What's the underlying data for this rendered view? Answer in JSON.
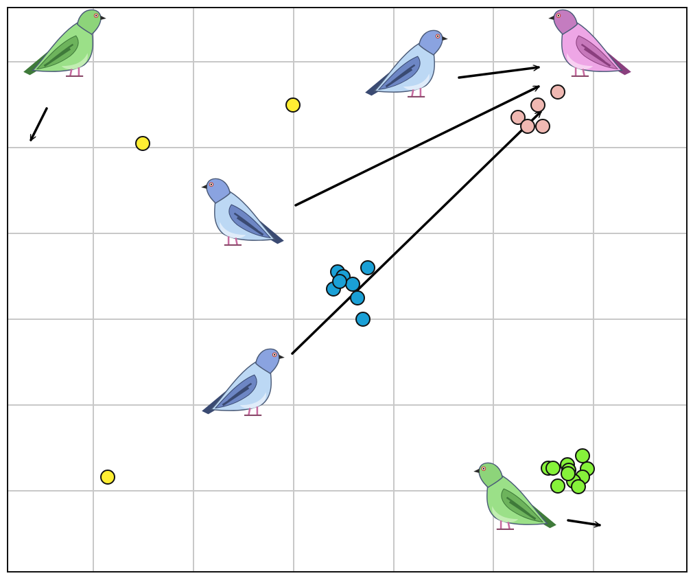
{
  "board": {
    "columns": 7,
    "rows": 6,
    "colors": {
      "background": "#ffffff",
      "grid": "#c8c8c8",
      "border": "#111111",
      "arrow": "#000000"
    }
  },
  "pigeons": [
    {
      "id": "green-pigeon-top-left",
      "variant": "green",
      "facing": "right",
      "color": "#8fdc7c"
    },
    {
      "id": "blue-pigeon-top",
      "variant": "blue",
      "facing": "right",
      "color": "#b9d8f3"
    },
    {
      "id": "pink-pigeon-top-right",
      "variant": "pink",
      "facing": "left",
      "color": "#e79ad8"
    },
    {
      "id": "blue-pigeon-center",
      "variant": "blue",
      "facing": "left",
      "color": "#b9d8f3"
    },
    {
      "id": "blue-pigeon-lower",
      "variant": "blue",
      "facing": "right",
      "color": "#b9d8f3"
    },
    {
      "id": "green-pigeon-bottom-right",
      "variant": "green",
      "facing": "left",
      "color": "#a9e89a"
    }
  ],
  "seed_groups": [
    {
      "id": "yellow-seeds",
      "color": "#ffee33",
      "count": 3
    },
    {
      "id": "blue-seed-cluster",
      "color": "#1aa0d6",
      "count": 8
    },
    {
      "id": "pink-seed-cluster",
      "color": "#efb8b2",
      "count": 5
    },
    {
      "id": "green-seed-cluster",
      "color": "#86f23a",
      "count": 11
    }
  ],
  "moves": [
    {
      "id": "green-pigeon-top-left-move",
      "from": "green-pigeon-top-left",
      "direction": "down-left"
    },
    {
      "id": "blue-pigeon-top-move",
      "from": "blue-pigeon-top",
      "to": "pink-pigeon-top-right"
    },
    {
      "id": "blue-pigeon-center-move",
      "from": "blue-pigeon-center",
      "to": "pink-pigeon-top-right"
    },
    {
      "id": "blue-pigeon-lower-move",
      "from": "blue-pigeon-lower",
      "to": "pink-seed-cluster"
    },
    {
      "id": "green-pigeon-bottom-right-move",
      "from": "green-pigeon-bottom-right",
      "direction": "right"
    }
  ]
}
